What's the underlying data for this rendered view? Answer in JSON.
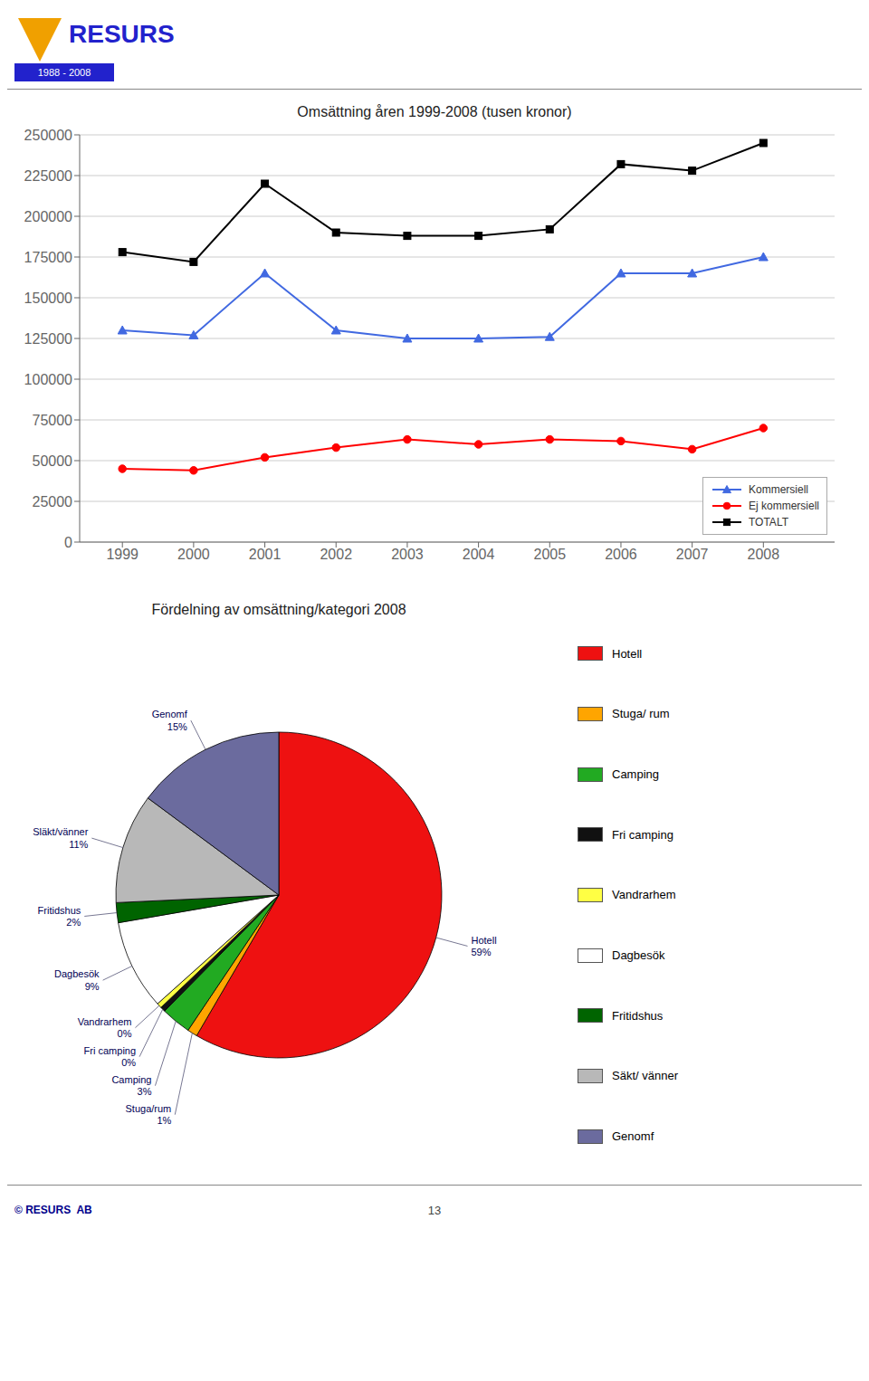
{
  "chart_data": [
    {
      "type": "line",
      "title": "Omsättning åren 1999-2008 (tusen kronor)",
      "x": [
        1999,
        2000,
        2001,
        2002,
        2003,
        2004,
        2005,
        2006,
        2007,
        2008
      ],
      "xlim": [
        1998.4,
        2009.0
      ],
      "xticks": [
        1999,
        2000,
        2001,
        2002,
        2003,
        2004,
        2005,
        2006,
        2007,
        2008
      ],
      "ylim": [
        0,
        250000
      ],
      "yticks": [
        0,
        25000,
        50000,
        75000,
        100000,
        125000,
        150000,
        175000,
        200000,
        225000,
        250000
      ],
      "grid": true,
      "legend": "lower right",
      "series": [
        {
          "name": "Kommersiell",
          "color": "#4169E1",
          "marker": "triangle",
          "values": [
            130000,
            127000,
            165000,
            130000,
            125000,
            125000,
            126000,
            165000,
            165000,
            175000
          ]
        },
        {
          "name": "Ej kommersiell",
          "color": "#FF0000",
          "marker": "circle",
          "values": [
            45000,
            44000,
            52000,
            58000,
            63000,
            60000,
            63000,
            62000,
            57000,
            70000
          ]
        },
        {
          "name": "TOTALT",
          "color": "#000000",
          "marker": "square",
          "values": [
            178000,
            172000,
            220000,
            190000,
            188000,
            188000,
            192000,
            232000,
            228000,
            245000
          ]
        }
      ]
    },
    {
      "type": "pie",
      "title": "Fördelning av omsättning/kategori 2008",
      "categories": [
        "Hotell",
        "Stuga/rum",
        "Camping",
        "Fri camping",
        "Vandrarhem",
        "Dagbesök",
        "Fritidshus",
        "Släkt/vänner",
        "Genomf"
      ],
      "values": [
        59,
        1,
        3,
        0.5,
        0.5,
        9,
        2,
        11,
        15
      ],
      "value_labels": [
        "59%",
        "1%",
        "3%",
        "0%",
        "0%",
        "9%",
        "2%",
        "11%",
        "15%"
      ],
      "colors": [
        "#EE1111",
        "#FFA500",
        "#22AA22",
        "#111111",
        "#FFFF44",
        "#FFFFFF",
        "#006400",
        "#B8B8B8",
        "#6B6B9E"
      ],
      "data_labels": true,
      "legend_labels": [
        "Hotell",
        "Stuga/ rum",
        "Camping",
        "Fri camping",
        "Vandrarhem",
        "Dagbesök",
        "Fritidshus",
        "Säkt/ vänner",
        "Genomf"
      ]
    }
  ],
  "annotations": [
    "RESURS",
    "1988 - 2008",
    "© RESURS  AB",
    "13"
  ]
}
